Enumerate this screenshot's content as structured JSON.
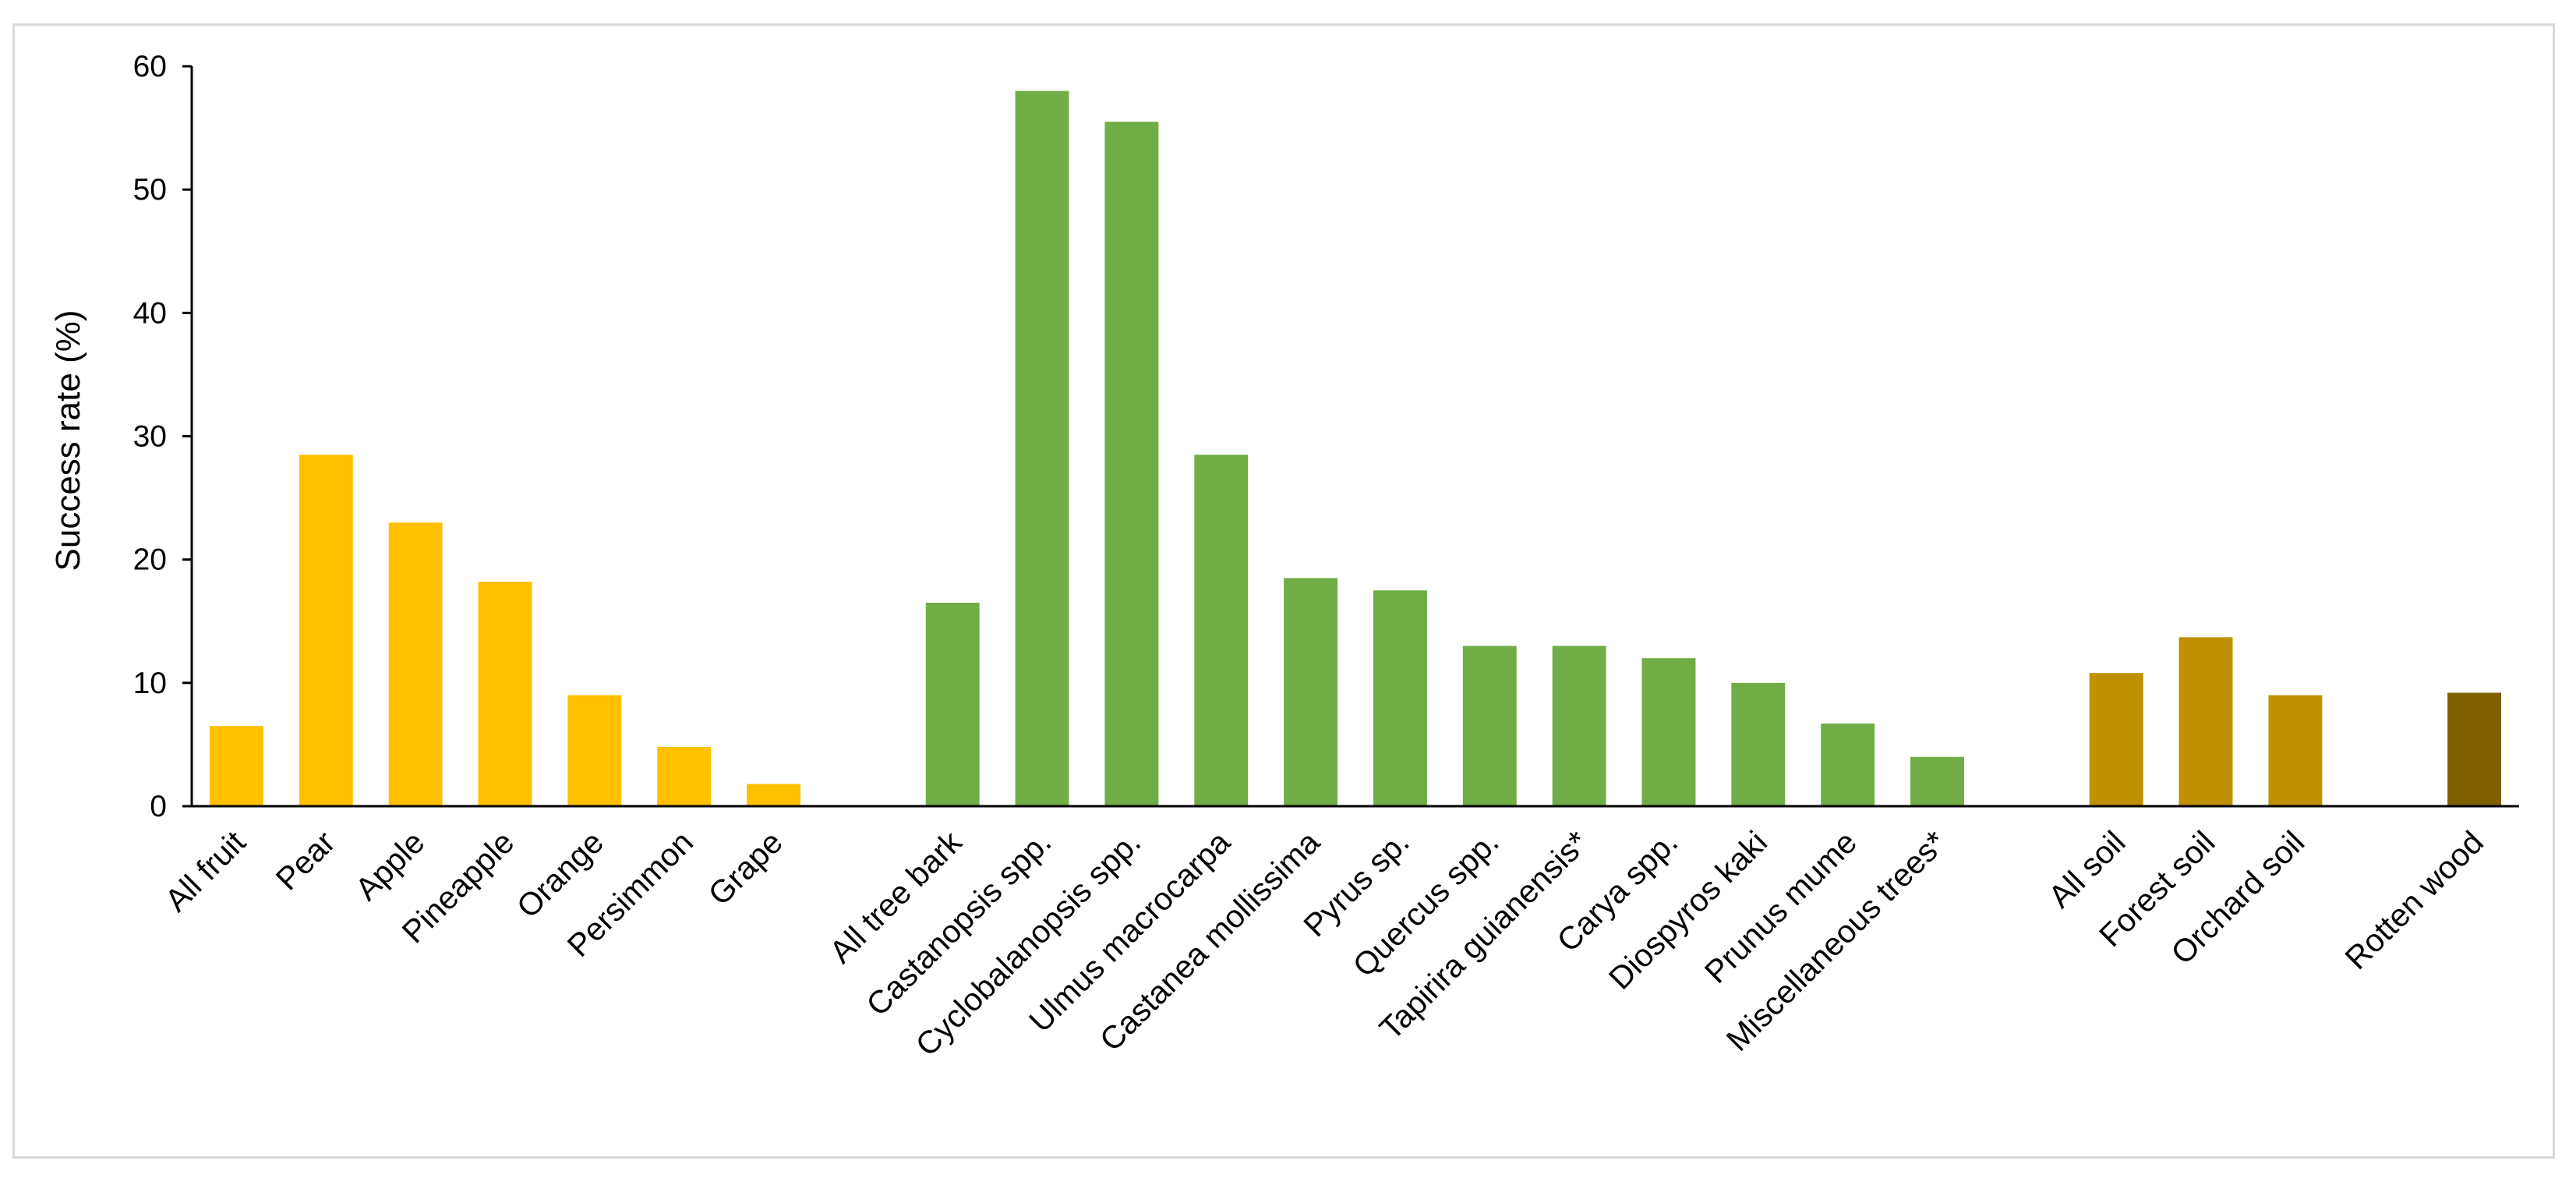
{
  "chart_data": {
    "type": "bar",
    "ylabel": "Success rate (%)",
    "xlabel": "",
    "title": "",
    "ylim": [
      0,
      60
    ],
    "yticks": [
      0,
      10,
      20,
      30,
      40,
      50,
      60
    ],
    "grid": false,
    "legend": "none",
    "colors": {
      "fruit": "#FFC000",
      "tree_bark": "#70AD47",
      "soil": "#BF9000",
      "rotten_wood": "#7F6000",
      "axis": "#000000",
      "frame": "#D9D9D9"
    },
    "bars": [
      {
        "category": "All fruit",
        "value": 6.5,
        "group": "fruit"
      },
      {
        "category": "Pear",
        "value": 28.5,
        "group": "fruit"
      },
      {
        "category": "Apple",
        "value": 23.0,
        "group": "fruit"
      },
      {
        "category": "Pineapple",
        "value": 18.2,
        "group": "fruit"
      },
      {
        "category": "Orange",
        "value": 9.0,
        "group": "fruit"
      },
      {
        "category": "Persimmon",
        "value": 4.8,
        "group": "fruit"
      },
      {
        "category": "Grape",
        "value": 1.8,
        "group": "fruit"
      },
      {
        "category": "",
        "value": null,
        "group": "gap"
      },
      {
        "category": "All tree bark",
        "value": 16.5,
        "group": "tree_bark"
      },
      {
        "category": "Castanopsis spp.",
        "value": 58.0,
        "group": "tree_bark"
      },
      {
        "category": "Cyclobalanopsis spp.",
        "value": 55.5,
        "group": "tree_bark"
      },
      {
        "category": "Ulmus macrocarpa",
        "value": 28.5,
        "group": "tree_bark"
      },
      {
        "category": "Castanea mollissima",
        "value": 18.5,
        "group": "tree_bark"
      },
      {
        "category": "Pyrus sp.",
        "value": 17.5,
        "group": "tree_bark"
      },
      {
        "category": "Quercus spp.",
        "value": 13.0,
        "group": "tree_bark"
      },
      {
        "category": "Tapirira guianensis*",
        "value": 13.0,
        "group": "tree_bark"
      },
      {
        "category": "Carya spp.",
        "value": 12.0,
        "group": "tree_bark"
      },
      {
        "category": "Diospyros kaki",
        "value": 10.0,
        "group": "tree_bark"
      },
      {
        "category": "Prunus mume",
        "value": 6.7,
        "group": "tree_bark"
      },
      {
        "category": "Miscellaneous trees*",
        "value": 4.0,
        "group": "tree_bark"
      },
      {
        "category": "",
        "value": null,
        "group": "gap"
      },
      {
        "category": "All soil",
        "value": 10.8,
        "group": "soil"
      },
      {
        "category": "Forest soil",
        "value": 13.7,
        "group": "soil"
      },
      {
        "category": "Orchard soil",
        "value": 9.0,
        "group": "soil"
      },
      {
        "category": "",
        "value": null,
        "group": "gap"
      },
      {
        "category": "Rotten wood",
        "value": 9.2,
        "group": "rotten_wood"
      }
    ]
  }
}
